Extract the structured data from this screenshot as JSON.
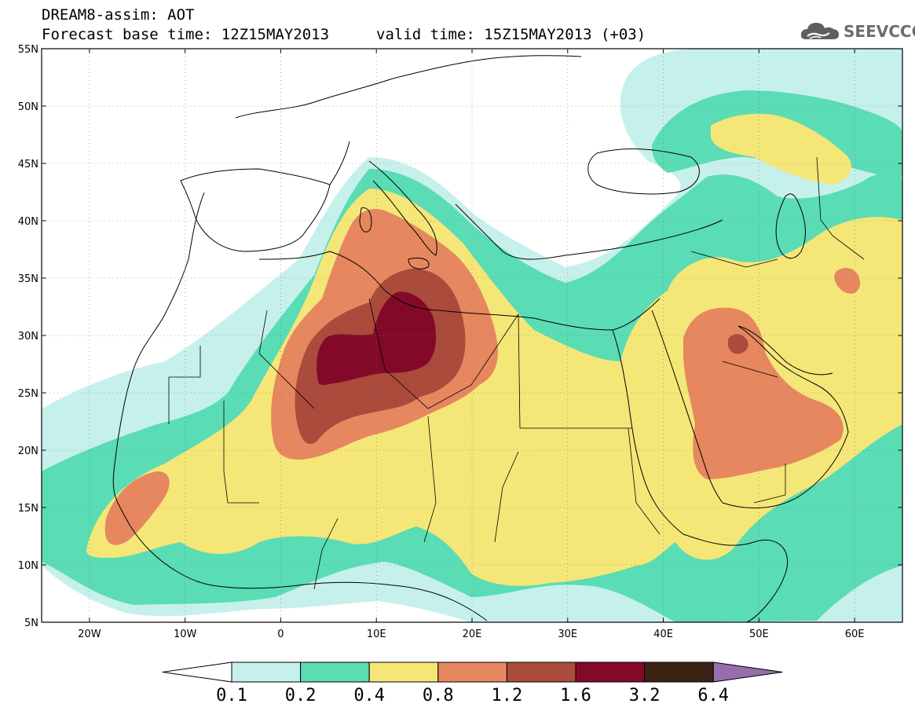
{
  "title": {
    "line1": "DREAM8-assim: AOT",
    "base_time": "Forecast base time: 12Z15MAY2013",
    "valid_time": "valid time: 15Z15MAY2013 (+03)"
  },
  "logo": {
    "text": "SEEVCCC",
    "icon": "cloud-logo-icon"
  },
  "map": {
    "lon_range": [
      -25,
      65
    ],
    "lat_range": [
      5,
      55
    ],
    "lat_ticks": [
      {
        "v": 55,
        "label": "55N"
      },
      {
        "v": 50,
        "label": "50N"
      },
      {
        "v": 45,
        "label": "45N"
      },
      {
        "v": 40,
        "label": "40N"
      },
      {
        "v": 35,
        "label": "35N"
      },
      {
        "v": 30,
        "label": "30N"
      },
      {
        "v": 25,
        "label": "25N"
      },
      {
        "v": 20,
        "label": "20N"
      },
      {
        "v": 15,
        "label": "15N"
      },
      {
        "v": 10,
        "label": "10N"
      },
      {
        "v": 5,
        "label": "5N"
      }
    ],
    "lon_ticks": [
      {
        "v": -20,
        "label": "20W"
      },
      {
        "v": -10,
        "label": "10W"
      },
      {
        "v": 0,
        "label": "0"
      },
      {
        "v": 10,
        "label": "10E"
      },
      {
        "v": 20,
        "label": "20E"
      },
      {
        "v": 30,
        "label": "30E"
      },
      {
        "v": 40,
        "label": "40E"
      },
      {
        "v": 50,
        "label": "50E"
      },
      {
        "v": 60,
        "label": "60E"
      }
    ]
  },
  "colorbar": {
    "levels": [
      "0.1",
      "0.2",
      "0.4",
      "0.8",
      "1.2",
      "1.6",
      "3.2",
      "6.4"
    ],
    "colors": [
      "#ffffff",
      "#c6f0eb",
      "#5adcb4",
      "#f5e678",
      "#e6875f",
      "#aa4b3c",
      "#820a28",
      "#3c2314",
      "#966ead"
    ]
  },
  "colors": {
    "c1": "#c6f0eb",
    "c2": "#5adcb4",
    "c3": "#f5e678",
    "c4": "#e6875f",
    "c5": "#aa4b3c",
    "c6": "#820a28"
  }
}
